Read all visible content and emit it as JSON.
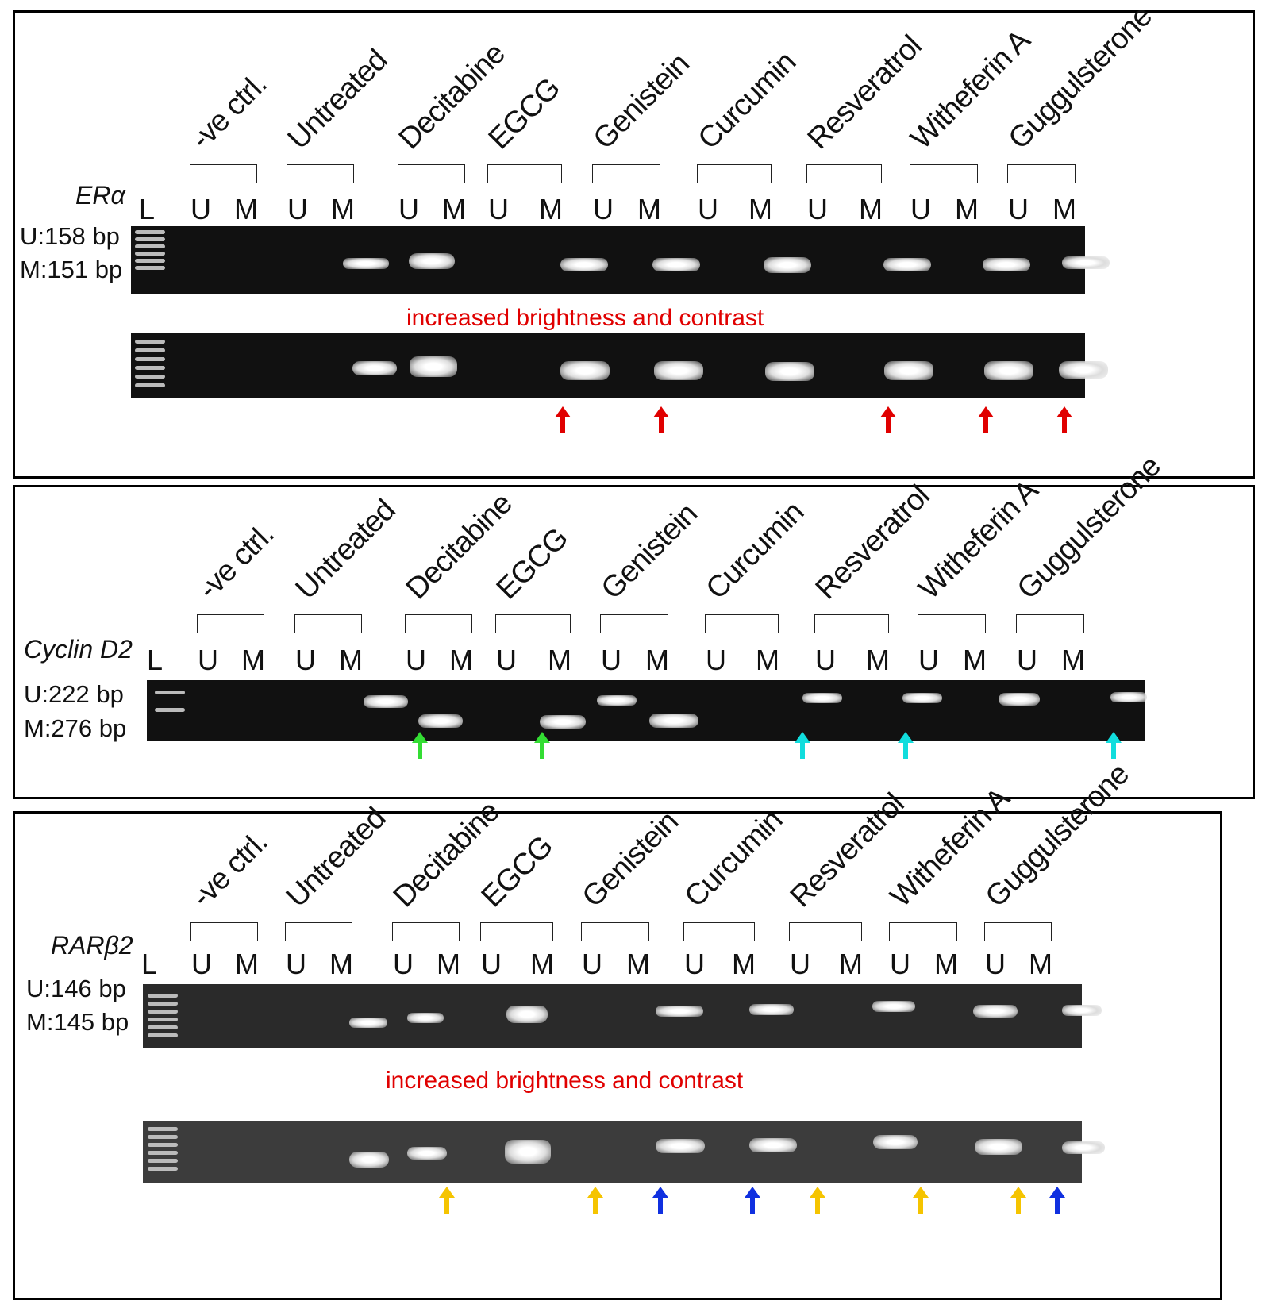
{
  "treatments": [
    "-ve ctrl.",
    "Untreated",
    "Decitabine",
    "EGCG",
    "Genistein",
    "Curcumin",
    "Resveratrol",
    "Witheferin A",
    "Guggulsterone"
  ],
  "lane_labels": {
    "ladder": "L",
    "unmethylated": "U",
    "methylated": "M"
  },
  "note": "increased brightness and contrast",
  "panels": [
    {
      "gene": "ERα",
      "u_size": "U:158 bp",
      "m_size": "M:151 bp"
    },
    {
      "gene": "Cyclin D2",
      "u_size": "U:222 bp",
      "m_size": "M:276 bp"
    },
    {
      "gene": "RARβ2",
      "u_size": "U:146 bp",
      "m_size": "M:145 bp"
    }
  ],
  "arrow_colors": {
    "red": "#e00000",
    "green": "#33dd33",
    "cyan": "#11dddd",
    "yellow": "#f5c400",
    "blue": "#1030e0"
  }
}
